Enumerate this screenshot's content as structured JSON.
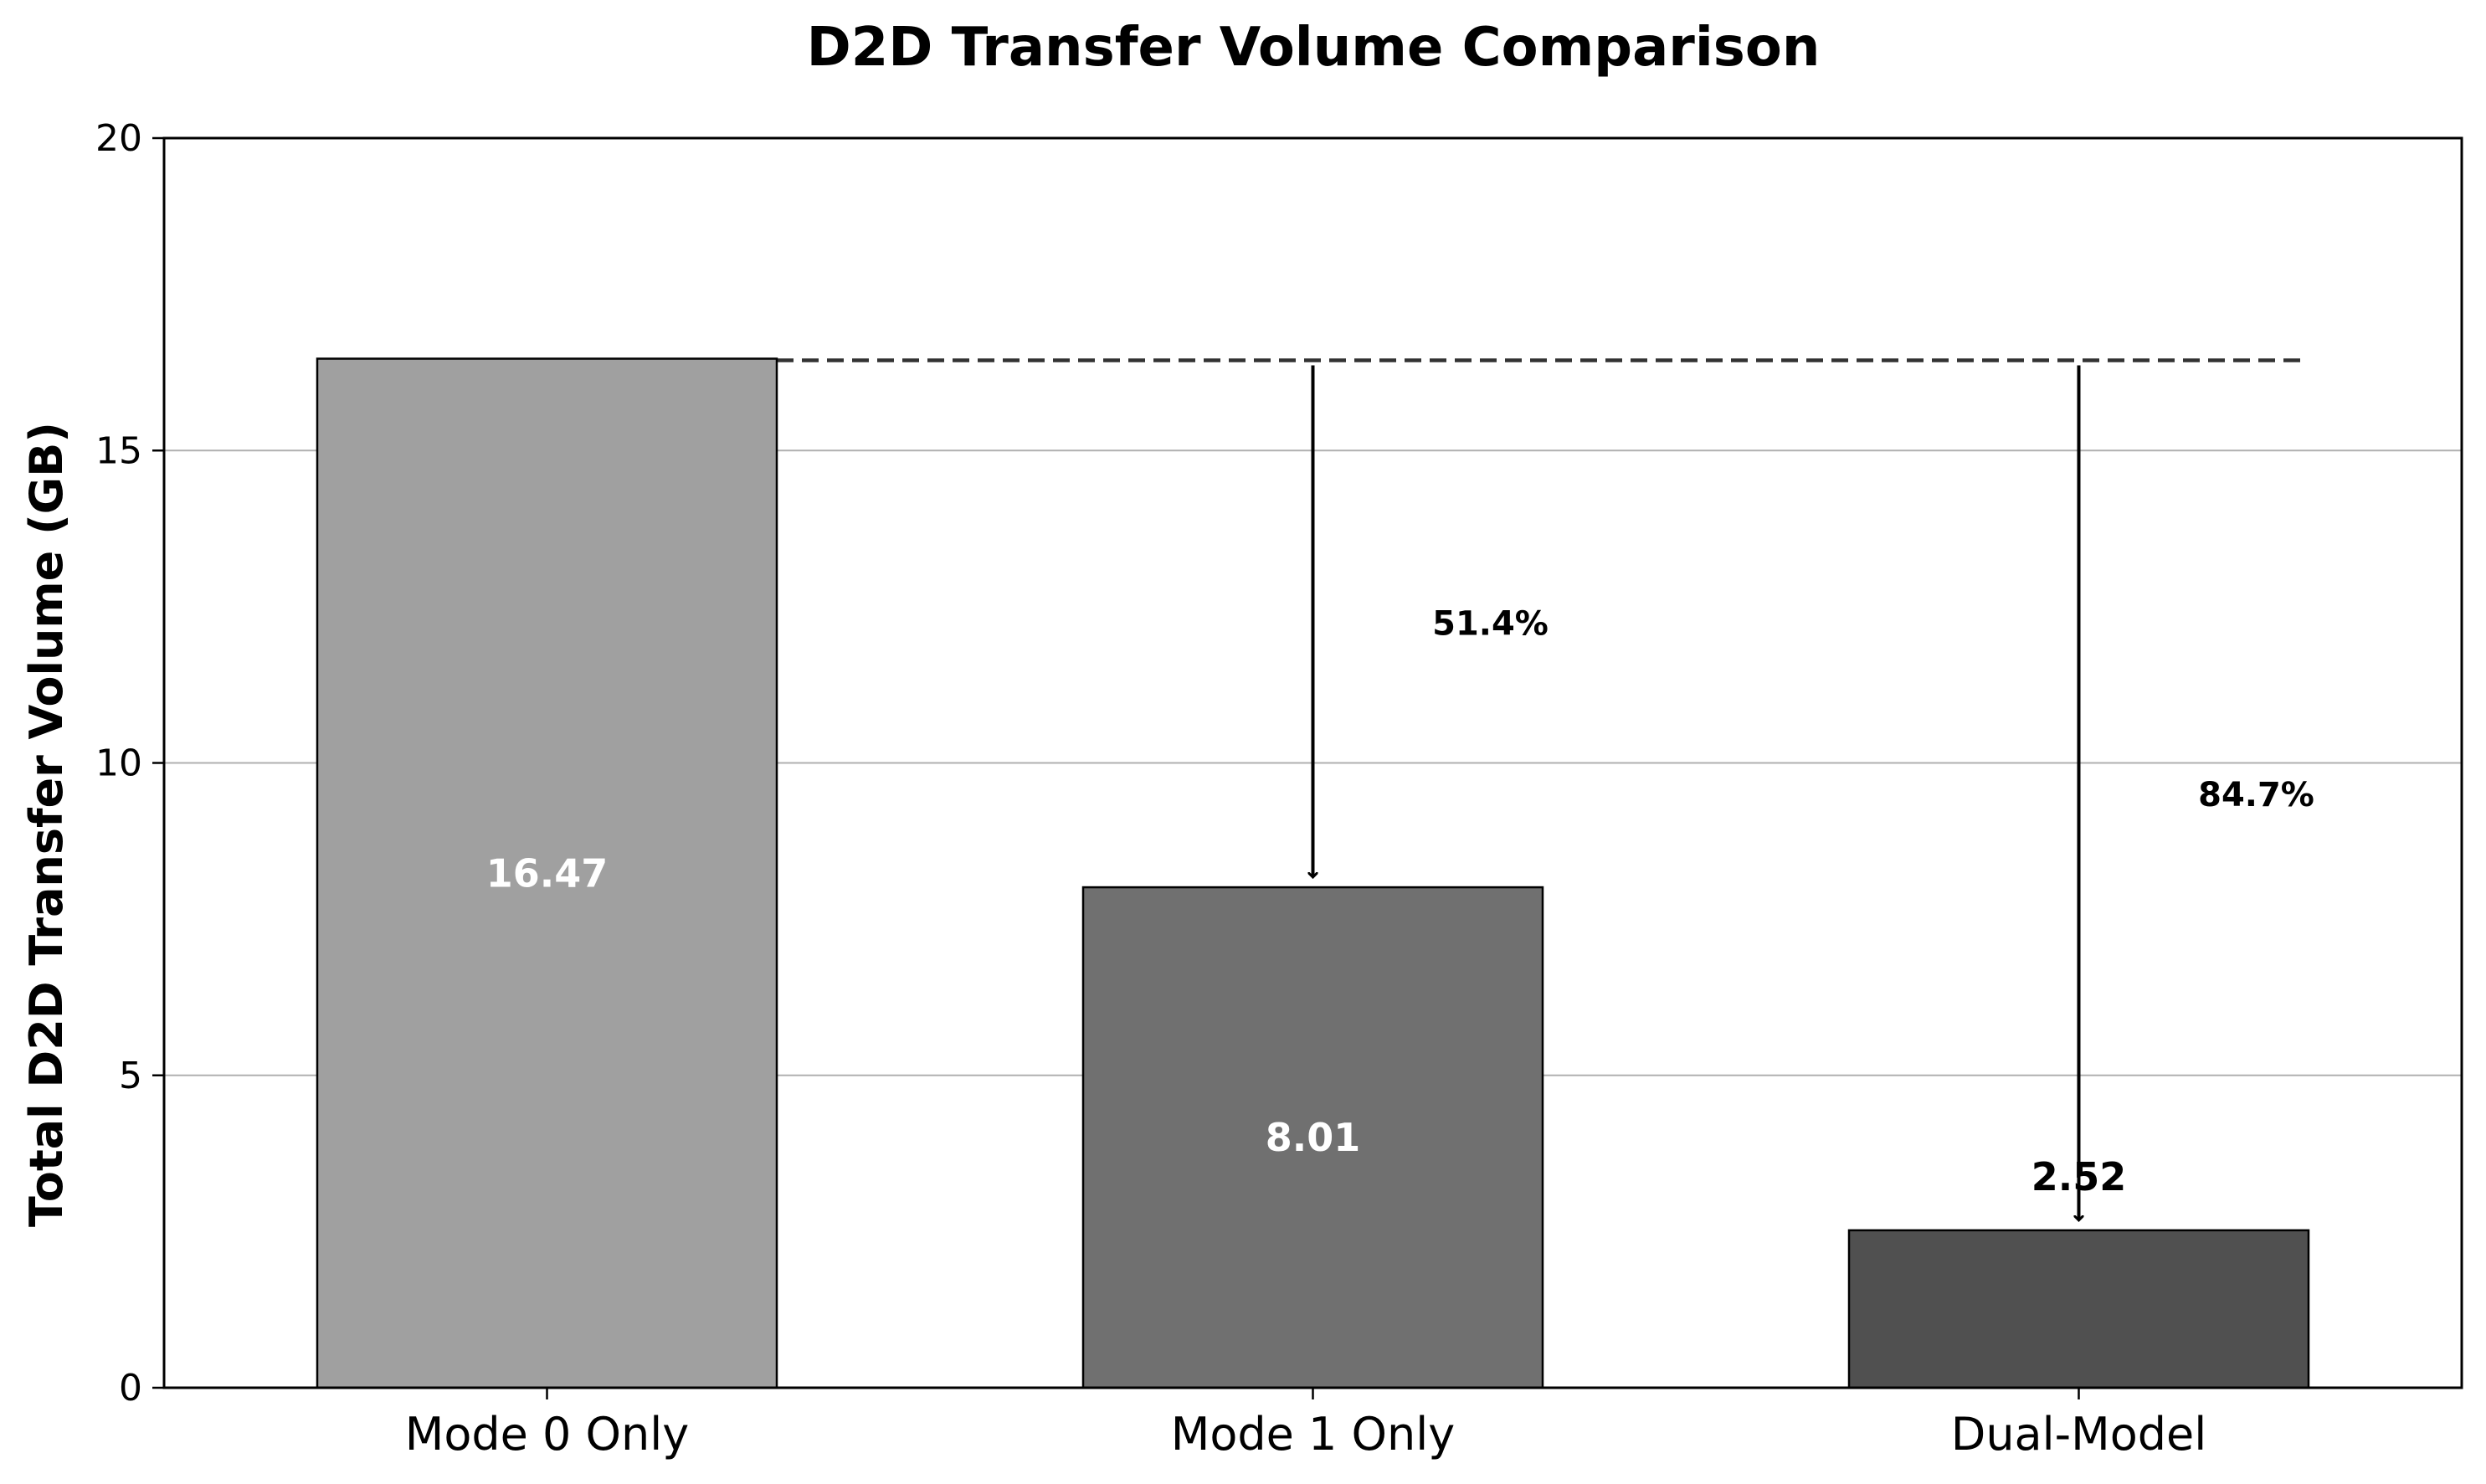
{
  "chart_data": {
    "type": "bar",
    "title": "D2D Transfer Volume Comparison",
    "xlabel": "",
    "ylabel": "Total D2D Transfer Volume (GB)",
    "ylim": [
      0,
      20
    ],
    "yticks": [
      0,
      5,
      10,
      15,
      20
    ],
    "grid": "y",
    "categories": [
      "Mode 0 Only",
      "Mode 1 Only",
      "Dual-Model"
    ],
    "values": [
      16.47,
      8.01,
      2.52
    ],
    "value_labels": [
      "16.47",
      "8.01",
      "2.52"
    ],
    "bar_colors": [
      "#a0a0a0",
      "#707070",
      "#505050"
    ],
    "label_colors": [
      "#ffffff",
      "#ffffff",
      "#000000"
    ],
    "reference_line": {
      "y": 16.47,
      "style": "dashed",
      "color": "#333333"
    },
    "annotations": [
      {
        "category": "Mode 1 Only",
        "from": 16.47,
        "to": 8.01,
        "text": "51.4%"
      },
      {
        "category": "Dual-Model",
        "from": 16.47,
        "to": 2.52,
        "text": "84.7%"
      }
    ]
  }
}
